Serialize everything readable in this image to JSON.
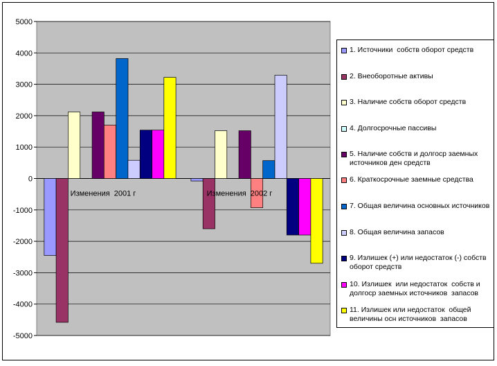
{
  "chart_data": {
    "type": "bar",
    "categories": [
      "Изменения  2001 г",
      "Изменения  2002 г"
    ],
    "ylim": [
      -5000,
      5000
    ],
    "y_ticks": [
      "5000",
      "4000",
      "3000",
      "2000",
      "1000",
      "0",
      "-1000",
      "-2000",
      "-3000",
      "-4000",
      "-5000"
    ],
    "grid": true,
    "legend_position": "right",
    "plot_background": "#c0c0c0",
    "series": [
      {
        "name": "1. Источники  собств оборот средств",
        "color": "#9999ff",
        "values": [
          -2450,
          -80
        ]
      },
      {
        "name": "2. Внеоборотные активы",
        "color": "#993366",
        "values": [
          -4580,
          -1600
        ]
      },
      {
        "name": "3. Наличие собств оборот средств",
        "color": "#ffffcc",
        "values": [
          2120,
          1520
        ]
      },
      {
        "name": "4. Долгосрочные пассивы",
        "color": "#ccffff",
        "values": [
          0,
          0
        ]
      },
      {
        "name": "5. Наличие собств и долгоср заемных источников ден средств",
        "color": "#660066",
        "values": [
          2120,
          1520
        ]
      },
      {
        "name": "6. Краткосрочные заемные средства",
        "color": "#ff8080",
        "values": [
          1700,
          -930
        ]
      },
      {
        "name": "7. Общая величина основных источников",
        "color": "#0066cc",
        "values": [
          3820,
          570
        ]
      },
      {
        "name": "8. Общая величина запасов",
        "color": "#ccccff",
        "values": [
          580,
          3290
        ]
      },
      {
        "name": "9. Излишек (+) или недостаток (-) собств оборот средств",
        "color": "#000080",
        "values": [
          1540,
          -1800
        ]
      },
      {
        "name": "10. Излишек  или недостаток  собств и долгоср заемных источников  запасов",
        "color": "#ff00ff",
        "values": [
          1540,
          -1800
        ]
      },
      {
        "name": "11. Излишек или недостаток  общей величины осн источников  запасов",
        "color": "#ffff00",
        "values": [
          3220,
          -2700
        ]
      }
    ]
  }
}
